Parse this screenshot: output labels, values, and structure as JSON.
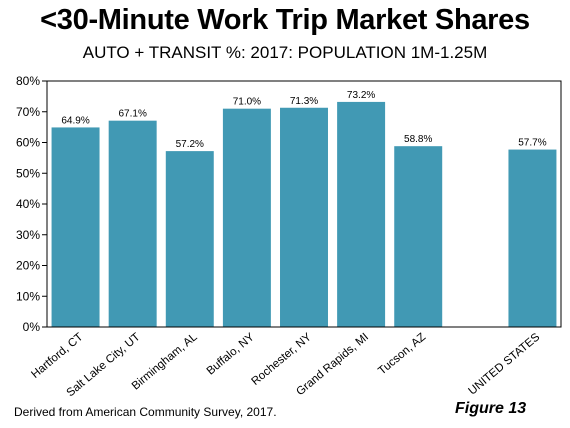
{
  "chart_data": {
    "type": "bar",
    "title": "<30-Minute Work Trip Market Shares",
    "subtitle": "AUTO + TRANSIT %:  2017: POPULATION 1M-1.25M",
    "categories": [
      "Hartford, CT",
      "Salt Lake City, UT",
      "Birmingham, AL",
      "Buffalo, NY",
      "Rochester, NY",
      "Grand Rapids, MI",
      "Tucson, AZ",
      "",
      "UNITED STATES"
    ],
    "values": [
      64.9,
      67.1,
      57.2,
      71.0,
      71.3,
      73.2,
      58.8,
      null,
      57.7
    ],
    "data_labels": [
      "64.9%",
      "67.1%",
      "57.2%",
      "71.0%",
      "71.3%",
      "73.2%",
      "58.8%",
      "",
      "57.7%"
    ],
    "ylim": [
      0,
      80
    ],
    "yticks": [
      "0%",
      "10%",
      "20%",
      "30%",
      "40%",
      "50%",
      "60%",
      "70%",
      "80%"
    ],
    "xlabel": "",
    "ylabel": "",
    "grid": false,
    "legend": "none",
    "bar_color": "#4199b4"
  },
  "footer": {
    "source": "Derived from American Community Survey, 2017.",
    "figure_label": "Figure 13"
  }
}
